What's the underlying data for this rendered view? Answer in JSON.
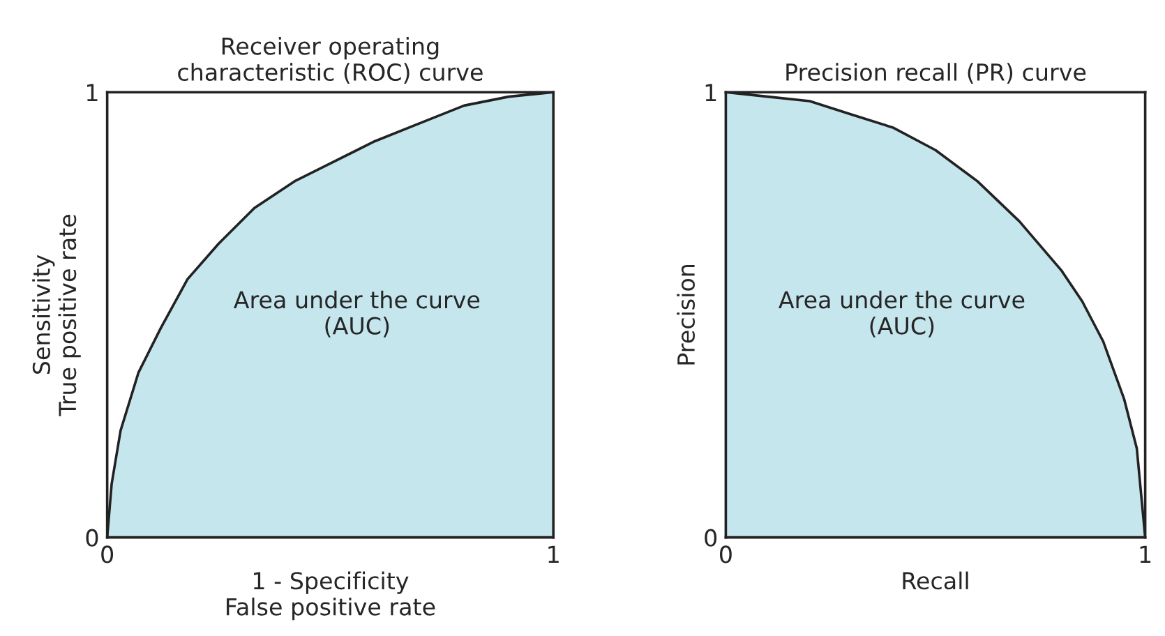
{
  "chart_data": [
    {
      "type": "area",
      "title": "Receiver operating\ncharacteristic (ROC) curve",
      "xlabel": "1 - Specificity\nFalse positive rate",
      "ylabel": "Sensitivity\nTrue positive rate",
      "annotations": [
        "Area under the curve\n(AUC)"
      ],
      "x": [
        0,
        0.01,
        0.03,
        0.07,
        0.12,
        0.18,
        0.25,
        0.33,
        0.42,
        0.5,
        0.6,
        0.7,
        0.8,
        0.9,
        1
      ],
      "series": [
        {
          "color": "#c5e6ed",
          "values": [
            0,
            0.12,
            0.24,
            0.37,
            0.47,
            0.58,
            0.66,
            0.74,
            0.8,
            0.84,
            0.89,
            0.93,
            0.97,
            0.99,
            1
          ]
        }
      ],
      "xlim": [
        0,
        1
      ],
      "ylim": [
        0,
        1
      ],
      "xticks": [
        0,
        1
      ],
      "yticks": [
        0,
        1
      ]
    },
    {
      "type": "area",
      "title": "Precision recall (PR) curve",
      "xlabel": "Recall",
      "ylabel": "Precision",
      "annotations": [
        "Area under the curve\n(AUC)"
      ],
      "x": [
        0,
        0.1,
        0.2,
        0.3,
        0.4,
        0.5,
        0.6,
        0.7,
        0.8,
        0.85,
        0.9,
        0.95,
        0.98,
        1
      ],
      "series": [
        {
          "color": "#c5e6ed",
          "values": [
            1,
            0.99,
            0.98,
            0.95,
            0.92,
            0.87,
            0.8,
            0.71,
            0.6,
            0.53,
            0.44,
            0.31,
            0.2,
            0
          ]
        }
      ],
      "xlim": [
        0,
        1
      ],
      "ylim": [
        0,
        1
      ],
      "xticks": [
        0,
        1
      ],
      "yticks": [
        0,
        1
      ]
    }
  ]
}
